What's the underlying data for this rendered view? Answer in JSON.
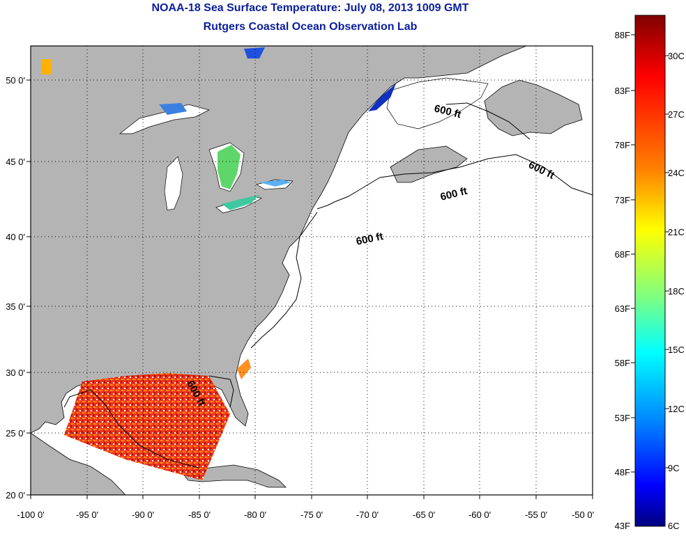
{
  "header": {
    "title": "NOAA-18 Sea Surface Temperature:  July 08, 2013 1009 GMT",
    "subtitle": "Rutgers Coastal Ocean Observation Lab"
  },
  "map": {
    "lon_range": [
      -100,
      -50
    ],
    "lat_range": [
      20,
      52
    ],
    "lon_labels": [
      "-100 0'",
      "-95 0'",
      "-90 0'",
      "-85 0'",
      "-80 0'",
      "-75 0'",
      "-70 0'",
      "-65 0'",
      "-60 0'",
      "-55 0'",
      "-50 0'"
    ],
    "lat_labels": [
      "20 0'",
      "25 0'",
      "30 0'",
      "35 0'",
      "40 0'",
      "45 0'",
      "50 0'"
    ],
    "isobath_label": "600 ft",
    "colors": {
      "land": "#b4b4b4",
      "ocean": "#ffffff",
      "grid": "#000000"
    }
  },
  "colorbar": {
    "f_labels": [
      "88F",
      "83F",
      "78F",
      "73F",
      "68F",
      "63F",
      "58F",
      "53F",
      "48F",
      "43F"
    ],
    "c_labels": [
      "30C",
      "27C",
      "24C",
      "21C",
      "18C",
      "15C",
      "12C",
      "9C",
      "6C"
    ],
    "stops": [
      "#800000",
      "#ff0000",
      "#ff8000",
      "#ffff00",
      "#80ff80",
      "#00ffff",
      "#0080ff",
      "#0000ff",
      "#000080"
    ]
  }
}
